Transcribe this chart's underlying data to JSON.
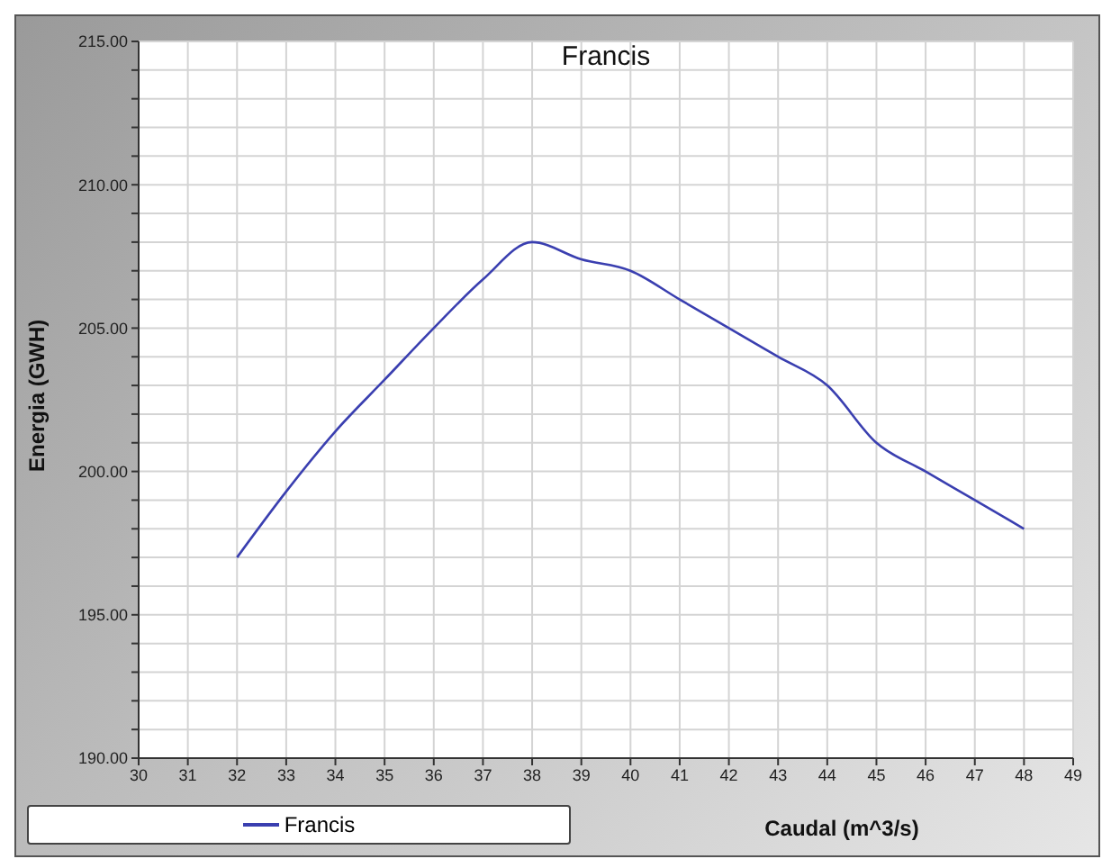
{
  "chart_data": {
    "type": "line",
    "title": "Francis",
    "xlabel": "Caudal (m^3/s)",
    "ylabel": "Energia (GWH)",
    "x": [
      32,
      33,
      34,
      35,
      36,
      37,
      38,
      39,
      40,
      41,
      42,
      43,
      44,
      45,
      46,
      47,
      48
    ],
    "series": [
      {
        "name": "Francis",
        "color": "#3a3fb0",
        "values": [
          197,
          199.3,
          201.4,
          203.2,
          205,
          206.7,
          208,
          207.4,
          207,
          206,
          205,
          204,
          203,
          201,
          200,
          199,
          198
        ]
      }
    ],
    "xlim": [
      30,
      49
    ],
    "xticks": [
      30,
      31,
      32,
      33,
      34,
      35,
      36,
      37,
      38,
      39,
      40,
      41,
      42,
      43,
      44,
      45,
      46,
      47,
      48,
      49
    ],
    "ylim": [
      190,
      215
    ],
    "yticks": [
      {
        "value": 190,
        "label": "190.00"
      },
      {
        "value": 191,
        "label": null
      },
      {
        "value": 192,
        "label": null
      },
      {
        "value": 193,
        "label": null
      },
      {
        "value": 194,
        "label": null
      },
      {
        "value": 195,
        "label": "195.00"
      },
      {
        "value": 196,
        "label": null
      },
      {
        "value": 197,
        "label": null
      },
      {
        "value": 198,
        "label": null
      },
      {
        "value": 199,
        "label": null
      },
      {
        "value": 200,
        "label": "200.00"
      },
      {
        "value": 201,
        "label": null
      },
      {
        "value": 202,
        "label": null
      },
      {
        "value": 203,
        "label": null
      },
      {
        "value": 204,
        "label": null
      },
      {
        "value": 205,
        "label": "205.00"
      },
      {
        "value": 206,
        "label": null
      },
      {
        "value": 207,
        "label": null
      },
      {
        "value": 208,
        "label": null
      },
      {
        "value": 209,
        "label": null
      },
      {
        "value": 210,
        "label": "210.00"
      },
      {
        "value": 211,
        "label": null
      },
      {
        "value": 212,
        "label": null
      },
      {
        "value": 213,
        "label": null
      },
      {
        "value": 214,
        "label": null
      },
      {
        "value": 215,
        "label": "215.00"
      }
    ],
    "grid": true,
    "legend": "bottom left",
    "marker": "none",
    "line_style": "solid"
  }
}
